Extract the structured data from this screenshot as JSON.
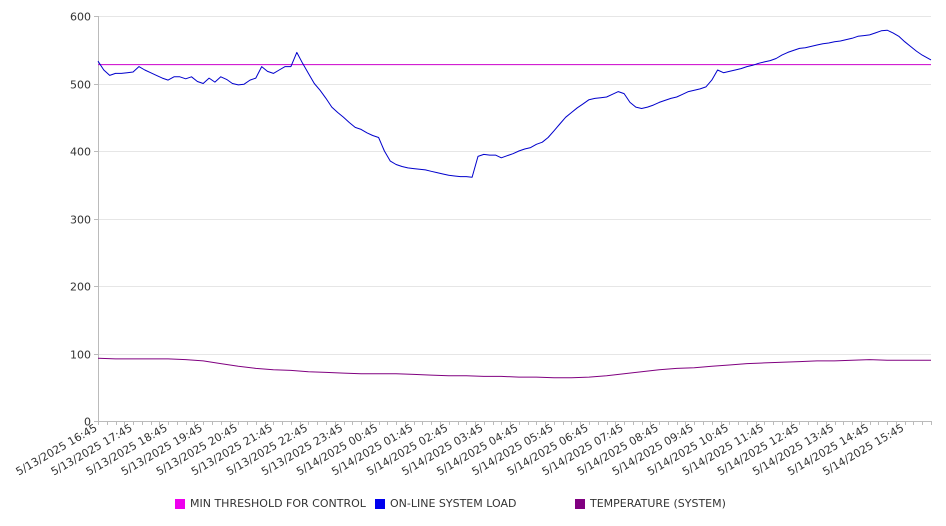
{
  "chart_data": {
    "type": "line",
    "title": "",
    "xlabel": "",
    "ylabel": "",
    "ylim": [
      0,
      600
    ],
    "yticks": [
      0,
      100,
      200,
      300,
      400,
      500,
      600
    ],
    "grid": true,
    "legend_position": "bottom",
    "xtick_labels": [
      "5/13/2025 16:45",
      "5/13/2025 17:45",
      "5/13/2025 18:45",
      "5/13/2025 19:45",
      "5/13/2025 20:45",
      "5/13/2025 21:45",
      "5/13/2025 22:45",
      "5/13/2025 23:45",
      "5/14/2025 00:45",
      "5/14/2025 01:45",
      "5/14/2025 02:45",
      "5/14/2025 03:45",
      "5/14/2025 04:45",
      "5/14/2025 05:45",
      "5/14/2025 06:45",
      "5/14/2025 07:45",
      "5/14/2025 08:45",
      "5/14/2025 09:45",
      "5/14/2025 10:45",
      "5/14/2025 11:45",
      "5/14/2025 12:45",
      "5/14/2025 13:45",
      "5/14/2025 14:45",
      "5/14/2025 15:45"
    ],
    "x_start": "5/13/2025 16:45",
    "x_end": "5/14/2025 16:30",
    "series": [
      {
        "name": "MIN THRESHOLD FOR CONTROL",
        "color": "#cc00cc",
        "points": [
          [
            "5/13/2025 16:45",
            528
          ],
          [
            "5/14/2025 16:30",
            528
          ]
        ]
      },
      {
        "name": "ON-LINE SYSTEM LOAD",
        "color": "#0000cc",
        "points": [
          [
            "5/13/2025 16:45",
            533
          ],
          [
            "5/13/2025 16:55",
            520
          ],
          [
            "5/13/2025 17:05",
            512
          ],
          [
            "5/13/2025 17:15",
            515
          ],
          [
            "5/13/2025 17:25",
            515
          ],
          [
            "5/13/2025 17:35",
            516
          ],
          [
            "5/13/2025 17:45",
            517
          ],
          [
            "5/13/2025 17:55",
            525
          ],
          [
            "5/13/2025 18:05",
            520
          ],
          [
            "5/13/2025 18:15",
            516
          ],
          [
            "5/13/2025 18:25",
            512
          ],
          [
            "5/13/2025 18:35",
            508
          ],
          [
            "5/13/2025 18:45",
            505
          ],
          [
            "5/13/2025 18:55",
            510
          ],
          [
            "5/13/2025 19:05",
            510
          ],
          [
            "5/13/2025 19:15",
            507
          ],
          [
            "5/13/2025 19:25",
            510
          ],
          [
            "5/13/2025 19:35",
            503
          ],
          [
            "5/13/2025 19:45",
            500
          ],
          [
            "5/13/2025 19:55",
            508
          ],
          [
            "5/13/2025 20:05",
            502
          ],
          [
            "5/13/2025 20:15",
            510
          ],
          [
            "5/13/2025 20:25",
            506
          ],
          [
            "5/13/2025 20:35",
            500
          ],
          [
            "5/13/2025 20:45",
            498
          ],
          [
            "5/13/2025 20:55",
            499
          ],
          [
            "5/13/2025 21:05",
            505
          ],
          [
            "5/13/2025 21:15",
            508
          ],
          [
            "5/13/2025 21:25",
            525
          ],
          [
            "5/13/2025 21:35",
            518
          ],
          [
            "5/13/2025 21:45",
            515
          ],
          [
            "5/13/2025 21:55",
            520
          ],
          [
            "5/13/2025 22:05",
            525
          ],
          [
            "5/13/2025 22:15",
            525
          ],
          [
            "5/13/2025 22:25",
            546
          ],
          [
            "5/13/2025 22:35",
            530
          ],
          [
            "5/13/2025 22:45",
            515
          ],
          [
            "5/13/2025 22:55",
            500
          ],
          [
            "5/13/2025 23:05",
            490
          ],
          [
            "5/13/2025 23:15",
            478
          ],
          [
            "5/13/2025 23:25",
            465
          ],
          [
            "5/13/2025 23:35",
            457
          ],
          [
            "5/13/2025 23:45",
            450
          ],
          [
            "5/13/2025 23:55",
            442
          ],
          [
            "5/14/2025 00:05",
            435
          ],
          [
            "5/14/2025 00:15",
            432
          ],
          [
            "5/14/2025 00:25",
            427
          ],
          [
            "5/14/2025 00:35",
            423
          ],
          [
            "5/14/2025 00:45",
            420
          ],
          [
            "5/14/2025 00:55",
            400
          ],
          [
            "5/14/2025 01:05",
            385
          ],
          [
            "5/14/2025 01:15",
            380
          ],
          [
            "5/14/2025 01:25",
            377
          ],
          [
            "5/14/2025 01:35",
            375
          ],
          [
            "5/14/2025 01:45",
            374
          ],
          [
            "5/14/2025 01:55",
            373
          ],
          [
            "5/14/2025 02:05",
            372
          ],
          [
            "5/14/2025 02:15",
            370
          ],
          [
            "5/14/2025 02:25",
            368
          ],
          [
            "5/14/2025 02:35",
            366
          ],
          [
            "5/14/2025 02:45",
            364
          ],
          [
            "5/14/2025 02:55",
            363
          ],
          [
            "5/14/2025 03:05",
            362
          ],
          [
            "5/14/2025 03:15",
            362
          ],
          [
            "5/14/2025 03:25",
            361
          ],
          [
            "5/14/2025 03:35",
            392
          ],
          [
            "5/14/2025 03:45",
            395
          ],
          [
            "5/14/2025 03:55",
            394
          ],
          [
            "5/14/2025 04:05",
            394
          ],
          [
            "5/14/2025 04:15",
            390
          ],
          [
            "5/14/2025 04:25",
            393
          ],
          [
            "5/14/2025 04:35",
            396
          ],
          [
            "5/14/2025 04:45",
            400
          ],
          [
            "5/14/2025 04:55",
            403
          ],
          [
            "5/14/2025 05:05",
            405
          ],
          [
            "5/14/2025 05:15",
            410
          ],
          [
            "5/14/2025 05:25",
            413
          ],
          [
            "5/14/2025 05:35",
            420
          ],
          [
            "5/14/2025 05:45",
            430
          ],
          [
            "5/14/2025 05:55",
            440
          ],
          [
            "5/14/2025 06:05",
            450
          ],
          [
            "5/14/2025 06:15",
            457
          ],
          [
            "5/14/2025 06:25",
            464
          ],
          [
            "5/14/2025 06:35",
            470
          ],
          [
            "5/14/2025 06:45",
            476
          ],
          [
            "5/14/2025 06:55",
            478
          ],
          [
            "5/14/2025 07:05",
            479
          ],
          [
            "5/14/2025 07:15",
            480
          ],
          [
            "5/14/2025 07:25",
            484
          ],
          [
            "5/14/2025 07:35",
            488
          ],
          [
            "5/14/2025 07:45",
            485
          ],
          [
            "5/14/2025 07:55",
            472
          ],
          [
            "5/14/2025 08:05",
            465
          ],
          [
            "5/14/2025 08:15",
            463
          ],
          [
            "5/14/2025 08:25",
            465
          ],
          [
            "5/14/2025 08:35",
            468
          ],
          [
            "5/14/2025 08:45",
            472
          ],
          [
            "5/14/2025 08:55",
            475
          ],
          [
            "5/14/2025 09:05",
            478
          ],
          [
            "5/14/2025 09:15",
            480
          ],
          [
            "5/14/2025 09:25",
            484
          ],
          [
            "5/14/2025 09:35",
            488
          ],
          [
            "5/14/2025 09:45",
            490
          ],
          [
            "5/14/2025 09:55",
            492
          ],
          [
            "5/14/2025 10:05",
            495
          ],
          [
            "5/14/2025 10:15",
            505
          ],
          [
            "5/14/2025 10:25",
            520
          ],
          [
            "5/14/2025 10:35",
            516
          ],
          [
            "5/14/2025 10:45",
            518
          ],
          [
            "5/14/2025 10:55",
            520
          ],
          [
            "5/14/2025 11:05",
            522
          ],
          [
            "5/14/2025 11:15",
            525
          ],
          [
            "5/14/2025 11:25",
            527
          ],
          [
            "5/14/2025 11:35",
            530
          ],
          [
            "5/14/2025 11:45",
            532
          ],
          [
            "5/14/2025 11:55",
            534
          ],
          [
            "5/14/2025 12:05",
            537
          ],
          [
            "5/14/2025 12:15",
            542
          ],
          [
            "5/14/2025 12:25",
            546
          ],
          [
            "5/14/2025 12:35",
            549
          ],
          [
            "5/14/2025 12:45",
            552
          ],
          [
            "5/14/2025 12:55",
            553
          ],
          [
            "5/14/2025 13:05",
            555
          ],
          [
            "5/14/2025 13:15",
            557
          ],
          [
            "5/14/2025 13:25",
            559
          ],
          [
            "5/14/2025 13:35",
            560
          ],
          [
            "5/14/2025 13:45",
            562
          ],
          [
            "5/14/2025 13:55",
            563
          ],
          [
            "5/14/2025 14:05",
            565
          ],
          [
            "5/14/2025 14:15",
            567
          ],
          [
            "5/14/2025 14:25",
            570
          ],
          [
            "5/14/2025 14:35",
            571
          ],
          [
            "5/14/2025 14:45",
            572
          ],
          [
            "5/14/2025 14:55",
            575
          ],
          [
            "5/14/2025 15:05",
            578
          ],
          [
            "5/14/2025 15:15",
            579
          ],
          [
            "5/14/2025 15:25",
            575
          ],
          [
            "5/14/2025 15:35",
            570
          ],
          [
            "5/14/2025 15:45",
            562
          ],
          [
            "5/14/2025 15:55",
            555
          ],
          [
            "5/14/2025 16:05",
            548
          ],
          [
            "5/14/2025 16:15",
            542
          ],
          [
            "5/14/2025 16:30",
            535
          ]
        ]
      },
      {
        "name": "TEMPERATURE (SYSTEM)",
        "color": "#800080",
        "points": [
          [
            "5/13/2025 16:45",
            93
          ],
          [
            "5/13/2025 17:15",
            92
          ],
          [
            "5/13/2025 17:45",
            92
          ],
          [
            "5/13/2025 18:15",
            92
          ],
          [
            "5/13/2025 18:45",
            92
          ],
          [
            "5/13/2025 19:15",
            91
          ],
          [
            "5/13/2025 19:45",
            89
          ],
          [
            "5/13/2025 20:15",
            85
          ],
          [
            "5/13/2025 20:45",
            81
          ],
          [
            "5/13/2025 21:15",
            78
          ],
          [
            "5/13/2025 21:45",
            76
          ],
          [
            "5/13/2025 22:15",
            75
          ],
          [
            "5/13/2025 22:45",
            73
          ],
          [
            "5/13/2025 23:15",
            72
          ],
          [
            "5/13/2025 23:45",
            71
          ],
          [
            "5/14/2025 00:15",
            70
          ],
          [
            "5/14/2025 00:45",
            70
          ],
          [
            "5/14/2025 01:15",
            70
          ],
          [
            "5/14/2025 01:45",
            69
          ],
          [
            "5/14/2025 02:15",
            68
          ],
          [
            "5/14/2025 02:45",
            67
          ],
          [
            "5/14/2025 03:15",
            67
          ],
          [
            "5/14/2025 03:45",
            66
          ],
          [
            "5/14/2025 04:15",
            66
          ],
          [
            "5/14/2025 04:45",
            65
          ],
          [
            "5/14/2025 05:15",
            65
          ],
          [
            "5/14/2025 05:45",
            64
          ],
          [
            "5/14/2025 06:15",
            64
          ],
          [
            "5/14/2025 06:45",
            65
          ],
          [
            "5/14/2025 07:15",
            67
          ],
          [
            "5/14/2025 07:45",
            70
          ],
          [
            "5/14/2025 08:15",
            73
          ],
          [
            "5/14/2025 08:45",
            76
          ],
          [
            "5/14/2025 09:15",
            78
          ],
          [
            "5/14/2025 09:45",
            79
          ],
          [
            "5/14/2025 10:15",
            81
          ],
          [
            "5/14/2025 10:45",
            83
          ],
          [
            "5/14/2025 11:15",
            85
          ],
          [
            "5/14/2025 11:45",
            86
          ],
          [
            "5/14/2025 12:15",
            87
          ],
          [
            "5/14/2025 12:45",
            88
          ],
          [
            "5/14/2025 13:15",
            89
          ],
          [
            "5/14/2025 13:45",
            89
          ],
          [
            "5/14/2025 14:15",
            90
          ],
          [
            "5/14/2025 14:45",
            91
          ],
          [
            "5/14/2025 15:15",
            90
          ],
          [
            "5/14/2025 15:45",
            90
          ],
          [
            "5/14/2025 16:15",
            90
          ],
          [
            "5/14/2025 16:30",
            90
          ]
        ]
      }
    ]
  }
}
